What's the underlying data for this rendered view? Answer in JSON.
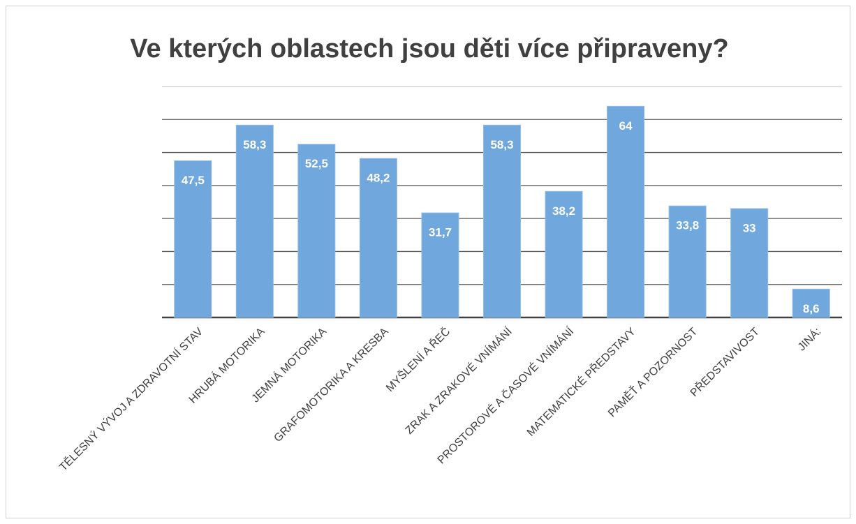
{
  "chart_data": {
    "type": "bar",
    "title": "Ve kterých oblastech jsou děti více připraveny?",
    "categories": [
      "TĚLESNÝ VÝVOJ A ZDRAVOTNÍ STAV",
      "HRUBÁ MOTORIKA",
      "JEMNÁ MOTORIKA",
      "GRAFOMOTORIKA A KRESBA",
      "MYŠLENÍ A ŘEČ",
      "ZRAK A ZRAKOVÉ VNÍMÁNÍ",
      "PROSTOROVÉ A ČASOVÉ VNÍMÁNÍ",
      "MATEMATICKÉ PŘEDSTAVY",
      "PAMĚŤ A POZORNOST",
      "PŘEDSTAVIVOST",
      "JINÁ:"
    ],
    "values": [
      47.5,
      58.3,
      52.5,
      48.2,
      31.7,
      58.3,
      38.2,
      64,
      33.8,
      33,
      8.6
    ],
    "value_labels": [
      "47,5",
      "58,3",
      "52,5",
      "48,2",
      "31,7",
      "58,3",
      "38,2",
      "64",
      "33,8",
      "33",
      "8,6"
    ],
    "color": "#70a7dc",
    "ylim": [
      0,
      70
    ],
    "yticks": [
      0,
      10,
      20,
      30,
      40,
      50,
      60,
      70
    ],
    "grid": true
  }
}
